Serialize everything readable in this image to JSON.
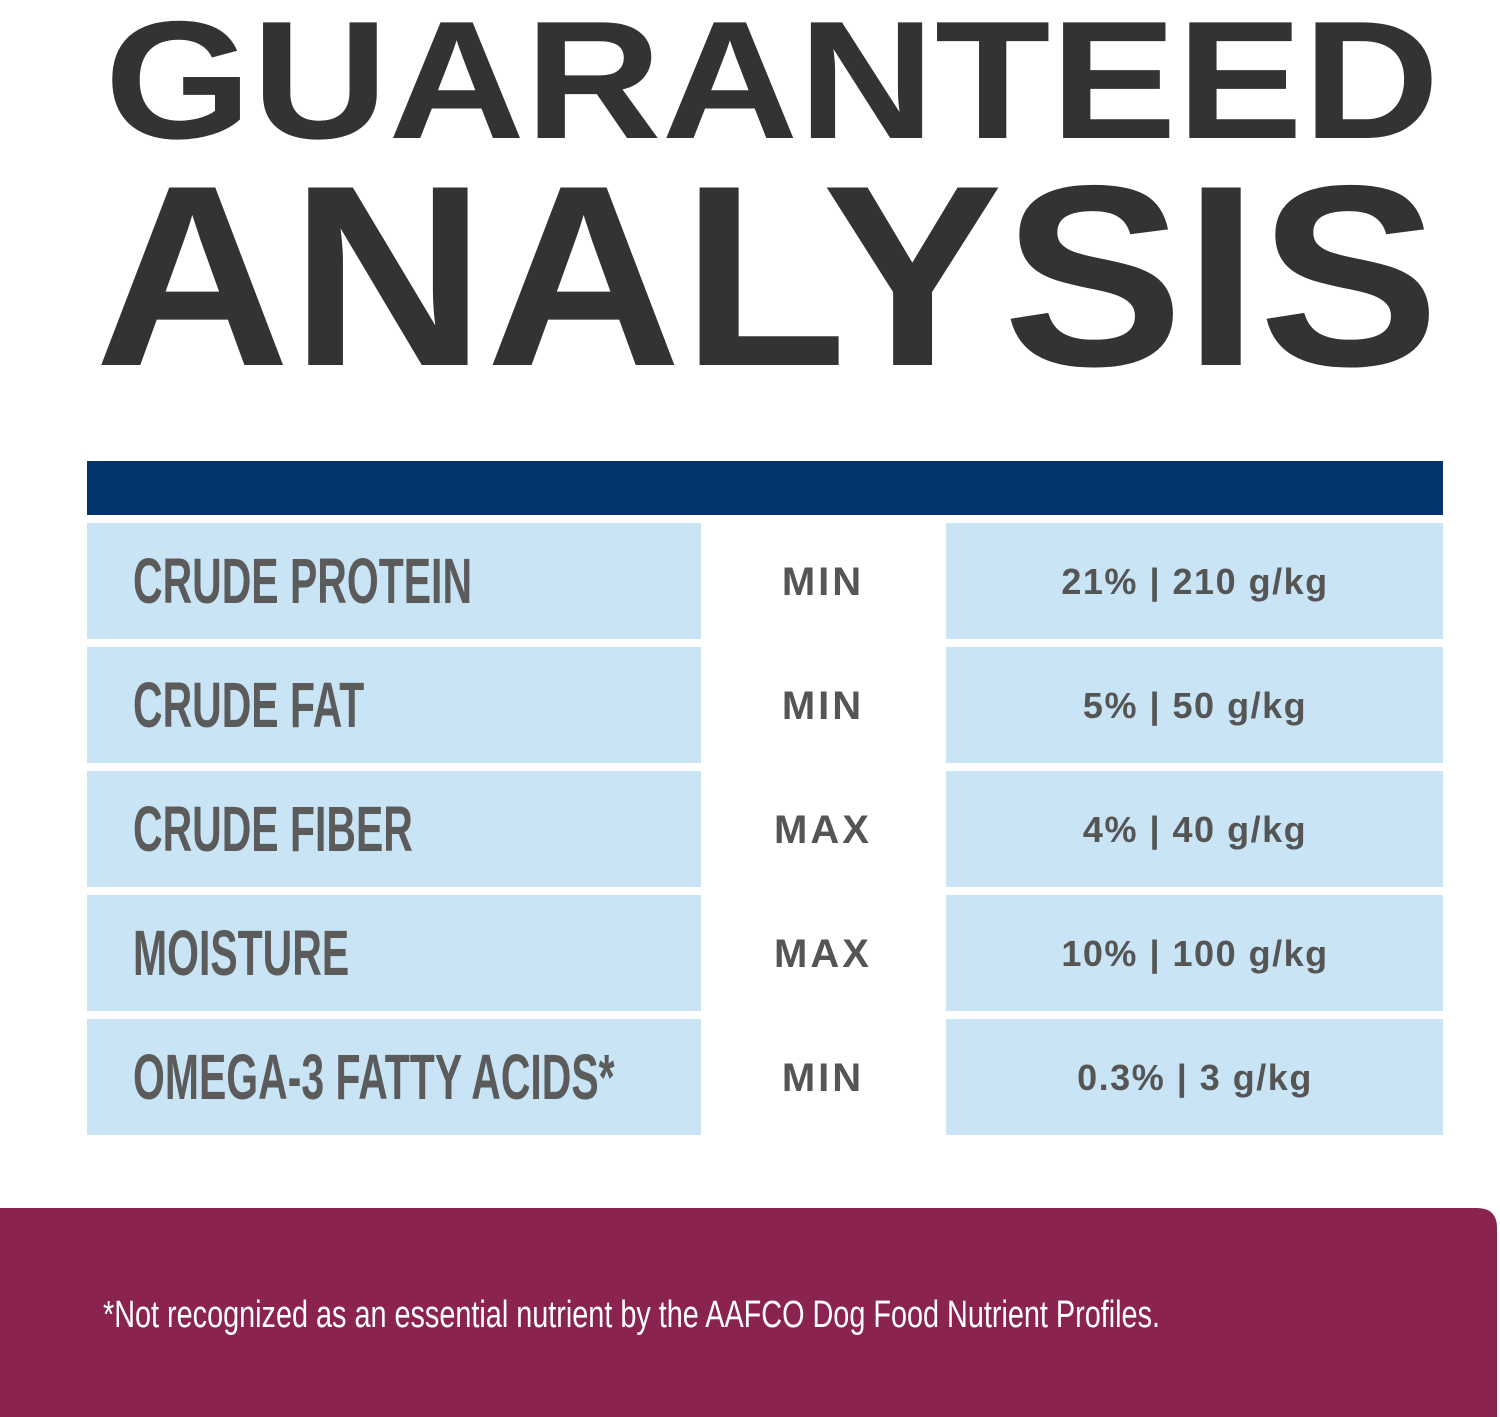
{
  "header": {
    "title_line_1": "GUARANTEED",
    "title_line_2": "ANALYSIS"
  },
  "table": {
    "rows": [
      [
        "CRUDE PROTEIN",
        "MIN",
        "21% | 210 g/kg"
      ],
      [
        "CRUDE FAT",
        "MIN",
        "5% | 50 g/kg"
      ],
      [
        "CRUDE FIBER",
        "MAX",
        "4% | 40 g/kg"
      ],
      [
        "MOISTURE",
        "MAX",
        "10% | 100 g/kg"
      ],
      [
        "OMEGA-3 FATTY ACIDS*",
        "MIN",
        "0.3% | 3 g/kg"
      ]
    ]
  },
  "footnote": "*Not recognized as an essential nutrient by the AAFCO Dog Food Nutrient Profiles."
}
